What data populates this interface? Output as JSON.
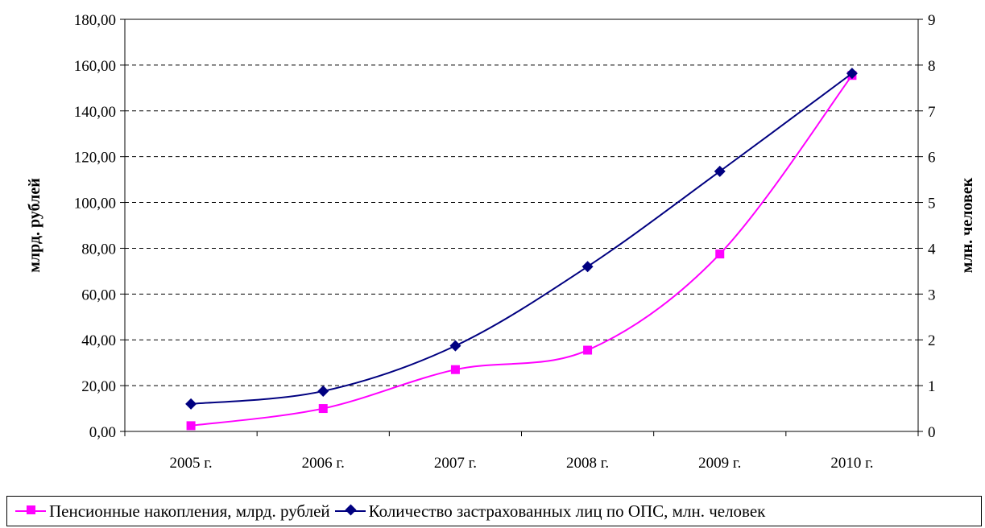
{
  "chart_data": {
    "type": "line",
    "categories": [
      "2005 г.",
      "2006 г.",
      "2007 г.",
      "2008 г.",
      "2009 г.",
      "2010 г."
    ],
    "series": [
      {
        "name": "Пенсионные накопления, млрд. рублей",
        "axis": "left",
        "color": "#ff00ff",
        "marker": "square",
        "values": [
          2.5,
          10.0,
          27.0,
          35.5,
          77.5,
          155.5
        ]
      },
      {
        "name": "Количество застрахованных лиц по ОПС, млн. человек",
        "axis": "right",
        "color": "#000080",
        "marker": "diamond",
        "values": [
          0.6,
          0.88,
          1.87,
          3.6,
          5.68,
          7.82
        ]
      }
    ],
    "ylabel": "млрд. рублей",
    "y2label": "млн. человек",
    "ylim": [
      0,
      180
    ],
    "y2lim": [
      0,
      9
    ],
    "yticks": [
      "0,00",
      "20,00",
      "40,00",
      "60,00",
      "80,00",
      "100,00",
      "120,00",
      "140,00",
      "160,00",
      "180,00"
    ],
    "y2ticks": [
      "0",
      "1",
      "2",
      "3",
      "4",
      "5",
      "6",
      "7",
      "8",
      "9"
    ],
    "grid": "horizontal dashed",
    "legend_position": "bottom",
    "smooth": true
  }
}
